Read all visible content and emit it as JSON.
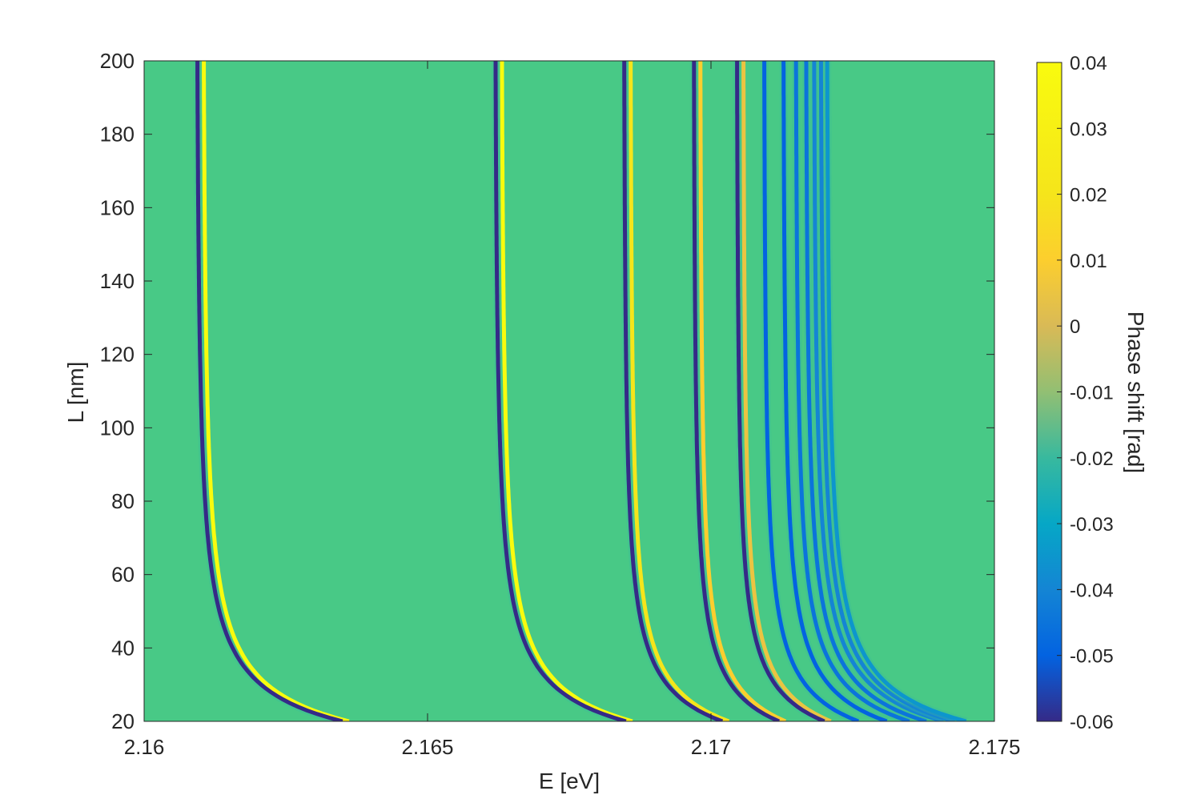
{
  "chart_data": {
    "type": "heatmap",
    "title": "",
    "xlabel": "E [eV]",
    "ylabel": "L [nm]",
    "xlim": [
      2.16,
      2.175
    ],
    "ylim": [
      20,
      200
    ],
    "x_ticks": [
      {
        "value": 2.16,
        "label": "2.16"
      },
      {
        "value": 2.165,
        "label": "2.165"
      },
      {
        "value": 2.17,
        "label": "2.17"
      },
      {
        "value": 2.175,
        "label": "2.175"
      }
    ],
    "y_ticks": [
      {
        "value": 20,
        "label": "20"
      },
      {
        "value": 40,
        "label": "40"
      },
      {
        "value": 60,
        "label": "60"
      },
      {
        "value": 80,
        "label": "80"
      },
      {
        "value": 100,
        "label": "100"
      },
      {
        "value": 120,
        "label": "120"
      },
      {
        "value": 140,
        "label": "140"
      },
      {
        "value": 160,
        "label": "160"
      },
      {
        "value": 180,
        "label": "180"
      },
      {
        "value": 200,
        "label": "200"
      }
    ],
    "colorbar": {
      "label": "Phase shift [rad]",
      "colormap": "parula",
      "clim": [
        -0.06,
        0.04
      ],
      "ticks": [
        {
          "value": 0.04,
          "label": "0.04"
        },
        {
          "value": 0.03,
          "label": "0.03"
        },
        {
          "value": 0.02,
          "label": "0.02"
        },
        {
          "value": 0.01,
          "label": "0.01"
        },
        {
          "value": 0,
          "label": "0"
        },
        {
          "value": -0.01,
          "label": "-0.01"
        },
        {
          "value": -0.02,
          "label": "-0.02"
        },
        {
          "value": -0.03,
          "label": "-0.03"
        },
        {
          "value": -0.04,
          "label": "-0.04"
        },
        {
          "value": -0.05,
          "label": "-0.05"
        },
        {
          "value": -0.06,
          "label": "-0.06"
        }
      ]
    },
    "background_value": 0.0,
    "resonance_lines": [
      {
        "E_at_Lmax": 2.16094,
        "E_at_20nm": 2.1635,
        "min_value": -0.06,
        "max_value": 0.04
      },
      {
        "E_at_Lmax": 2.1662,
        "E_at_20nm": 2.1685,
        "min_value": -0.06,
        "max_value": 0.04
      },
      {
        "E_at_Lmax": 2.16847,
        "E_at_20nm": 2.1702,
        "min_value": -0.06,
        "max_value": 0.02
      },
      {
        "E_at_Lmax": 2.1697,
        "E_at_20nm": 2.1712,
        "min_value": -0.06,
        "max_value": 0.01
      },
      {
        "E_at_Lmax": 2.17046,
        "E_at_20nm": 2.172,
        "min_value": -0.06,
        "max_value": 0.005
      },
      {
        "E_at_Lmax": 2.17094,
        "E_at_20nm": 2.1726,
        "min_value": -0.05,
        "max_value": 0.003
      },
      {
        "E_at_Lmax": 2.17128,
        "E_at_20nm": 2.1731,
        "min_value": -0.05,
        "max_value": 0.002
      },
      {
        "E_at_Lmax": 2.1715,
        "E_at_20nm": 2.1735,
        "min_value": -0.045,
        "max_value": 0.0
      },
      {
        "E_at_Lmax": 2.17168,
        "E_at_20nm": 2.1738,
        "min_value": -0.045,
        "max_value": 0.0
      },
      {
        "E_at_Lmax": 2.17182,
        "E_at_20nm": 2.1741,
        "min_value": -0.04,
        "max_value": 0.0
      },
      {
        "E_at_Lmax": 2.17194,
        "E_at_20nm": 2.1743,
        "min_value": -0.04,
        "max_value": 0.0
      },
      {
        "E_at_Lmax": 2.17205,
        "E_at_20nm": 2.1745,
        "min_value": -0.035,
        "max_value": 0.0
      }
    ],
    "grid": false,
    "legend": "none"
  }
}
